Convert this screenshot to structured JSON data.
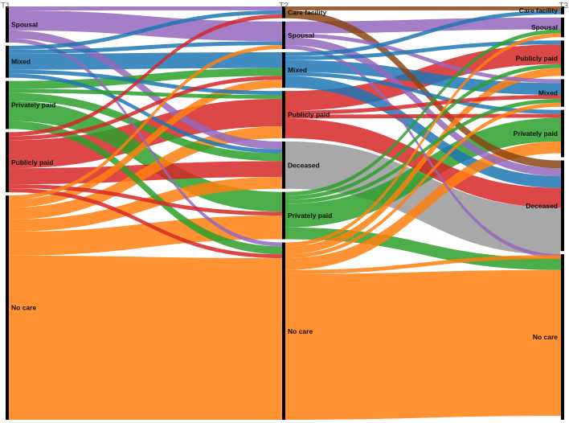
{
  "chart_data": {
    "type": "alluvial",
    "timepoints": [
      "T1",
      "T2",
      "T3"
    ],
    "categories": {
      "care_facility": {
        "label": "Care facility",
        "color": "#8B4513"
      },
      "spousal": {
        "label": "Spousal",
        "color": "#9467BD"
      },
      "mixed": {
        "label": "Mixed",
        "color": "#1F77B4"
      },
      "privately_paid": {
        "label": "Privately paid",
        "color": "#2CA02C"
      },
      "publicly_paid": {
        "label": "Publicly paid",
        "color": "#D62728"
      },
      "deceased": {
        "label": "Deceased",
        "color": "#999999"
      },
      "no_care": {
        "label": "No care",
        "color": "#FF7F0E"
      }
    },
    "columns": [
      {
        "time": "T1",
        "order": [
          "spousal",
          "mixed",
          "privately_paid",
          "publicly_paid",
          "no_care"
        ],
        "values": {
          "spousal": 9,
          "mixed": 8,
          "privately_paid": 12,
          "publicly_paid": 15,
          "no_care": 56
        }
      },
      {
        "time": "T2",
        "order": [
          "care_facility",
          "spousal",
          "mixed",
          "publicly_paid",
          "deceased",
          "privately_paid",
          "no_care"
        ],
        "values": {
          "care_facility": 3,
          "spousal": 7,
          "mixed": 9,
          "publicly_paid": 12,
          "deceased": 12,
          "privately_paid": 12,
          "no_care": 45
        }
      },
      {
        "time": "T3",
        "order": [
          "care_facility",
          "spousal",
          "publicly_paid",
          "mixed",
          "privately_paid",
          "deceased",
          "no_care"
        ],
        "values": {
          "care_facility": 2,
          "spousal": 5,
          "publicly_paid": 9,
          "mixed": 7,
          "privately_paid": 12,
          "deceased": 23,
          "no_care": 42
        }
      }
    ],
    "flows": [
      {
        "from": "T1",
        "to": "T2",
        "links": [
          [
            "spousal",
            "care_facility",
            1
          ],
          [
            "spousal",
            "spousal",
            5
          ],
          [
            "spousal",
            "deceased",
            2
          ],
          [
            "spousal",
            "no_care",
            1
          ],
          [
            "mixed",
            "care_facility",
            1
          ],
          [
            "mixed",
            "spousal",
            1
          ],
          [
            "mixed",
            "mixed",
            4
          ],
          [
            "mixed",
            "publicly_paid",
            1
          ],
          [
            "mixed",
            "deceased",
            1
          ],
          [
            "privately_paid",
            "mixed",
            2
          ],
          [
            "privately_paid",
            "publicly_paid",
            1
          ],
          [
            "privately_paid",
            "deceased",
            2
          ],
          [
            "privately_paid",
            "privately_paid",
            5
          ],
          [
            "privately_paid",
            "no_care",
            2
          ],
          [
            "publicly_paid",
            "care_facility",
            1
          ],
          [
            "publicly_paid",
            "mixed",
            1
          ],
          [
            "publicly_paid",
            "publicly_paid",
            7
          ],
          [
            "publicly_paid",
            "deceased",
            4
          ],
          [
            "publicly_paid",
            "privately_paid",
            1
          ],
          [
            "publicly_paid",
            "no_care",
            1
          ],
          [
            "no_care",
            "spousal",
            1
          ],
          [
            "no_care",
            "mixed",
            2
          ],
          [
            "no_care",
            "publicly_paid",
            3
          ],
          [
            "no_care",
            "deceased",
            3
          ],
          [
            "no_care",
            "privately_paid",
            6
          ],
          [
            "no_care",
            "no_care",
            41
          ]
        ]
      },
      {
        "from": "T2",
        "to": "T3",
        "links": [
          [
            "care_facility",
            "care_facility",
            1
          ],
          [
            "care_facility",
            "deceased",
            2
          ],
          [
            "spousal",
            "spousal",
            3
          ],
          [
            "spousal",
            "mixed",
            1
          ],
          [
            "spousal",
            "deceased",
            2
          ],
          [
            "spousal",
            "no_care",
            1
          ],
          [
            "mixed",
            "care_facility",
            1
          ],
          [
            "mixed",
            "publicly_paid",
            1
          ],
          [
            "mixed",
            "mixed",
            3
          ],
          [
            "mixed",
            "privately_paid",
            1
          ],
          [
            "mixed",
            "deceased",
            3
          ],
          [
            "publicly_paid",
            "publicly_paid",
            5
          ],
          [
            "publicly_paid",
            "mixed",
            1
          ],
          [
            "publicly_paid",
            "privately_paid",
            1
          ],
          [
            "publicly_paid",
            "deceased",
            5
          ],
          [
            "deceased",
            "deceased",
            12
          ],
          [
            "privately_paid",
            "spousal",
            1
          ],
          [
            "privately_paid",
            "publicly_paid",
            1
          ],
          [
            "privately_paid",
            "mixed",
            1
          ],
          [
            "privately_paid",
            "privately_paid",
            6
          ],
          [
            "privately_paid",
            "no_care",
            3
          ],
          [
            "no_care",
            "spousal",
            1
          ],
          [
            "no_care",
            "publicly_paid",
            2
          ],
          [
            "no_care",
            "mixed",
            1
          ],
          [
            "no_care",
            "privately_paid",
            3
          ],
          [
            "no_care",
            "deceased",
            1
          ],
          [
            "no_care",
            "no_care",
            37
          ]
        ]
      }
    ]
  }
}
